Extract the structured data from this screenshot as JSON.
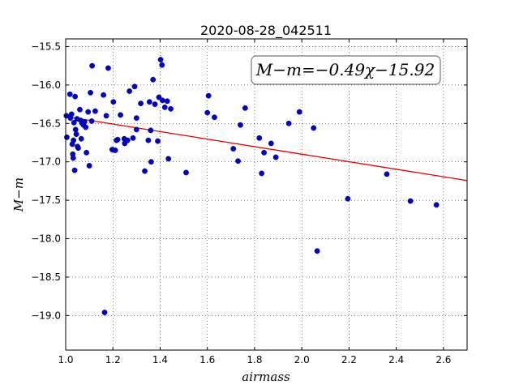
{
  "chart_data": {
    "type": "scatter",
    "title": "2020-08-28_042511",
    "xlabel": "airmass",
    "ylabel": "M−m",
    "xlim": [
      1.0,
      2.7
    ],
    "ylim": [
      -19.45,
      -15.4
    ],
    "xticks": [
      "1.0",
      "1.2",
      "1.4",
      "1.6",
      "1.8",
      "2.0",
      "2.2",
      "2.4",
      "2.6"
    ],
    "yticks": [
      "−15.5",
      "−16.0",
      "−16.5",
      "−17.0",
      "−17.5",
      "−18.0",
      "−18.5",
      "−19.0"
    ],
    "grid": true,
    "annotation": "M−m=−0.49χ−15.92",
    "fit": {
      "slope": -0.49,
      "intercept": -15.92,
      "color": "#dd0000"
    },
    "point_color": "#0000cc",
    "points": [
      [
        1.003,
        -16.4
      ],
      [
        1.005,
        -16.68
      ],
      [
        1.018,
        -16.12
      ],
      [
        1.02,
        -16.43
      ],
      [
        1.025,
        -16.38
      ],
      [
        1.028,
        -16.77
      ],
      [
        1.03,
        -16.9
      ],
      [
        1.032,
        -16.95
      ],
      [
        1.033,
        -16.72
      ],
      [
        1.035,
        -16.49
      ],
      [
        1.038,
        -17.11
      ],
      [
        1.04,
        -16.15
      ],
      [
        1.042,
        -16.58
      ],
      [
        1.045,
        -16.64
      ],
      [
        1.048,
        -16.44
      ],
      [
        1.05,
        -16.8
      ],
      [
        1.053,
        -16.82
      ],
      [
        1.06,
        -16.32
      ],
      [
        1.063,
        -16.46
      ],
      [
        1.066,
        -16.7
      ],
      [
        1.07,
        -16.5
      ],
      [
        1.075,
        -16.52
      ],
      [
        1.08,
        -16.48
      ],
      [
        1.085,
        -16.55
      ],
      [
        1.088,
        -16.88
      ],
      [
        1.095,
        -16.35
      ],
      [
        1.1,
        -17.05
      ],
      [
        1.105,
        -16.1
      ],
      [
        1.11,
        -16.47
      ],
      [
        1.112,
        -15.75
      ],
      [
        1.125,
        -16.34
      ],
      [
        1.16,
        -16.13
      ],
      [
        1.165,
        -18.96
      ],
      [
        1.172,
        -16.4
      ],
      [
        1.18,
        -15.78
      ],
      [
        1.197,
        -16.84
      ],
      [
        1.202,
        -16.22
      ],
      [
        1.21,
        -16.85
      ],
      [
        1.215,
        -16.72
      ],
      [
        1.22,
        -16.71
      ],
      [
        1.232,
        -16.39
      ],
      [
        1.248,
        -16.7
      ],
      [
        1.25,
        -16.76
      ],
      [
        1.262,
        -16.72
      ],
      [
        1.27,
        -16.08
      ],
      [
        1.285,
        -16.69
      ],
      [
        1.292,
        -16.02
      ],
      [
        1.3,
        -16.43
      ],
      [
        1.3,
        -16.58
      ],
      [
        1.318,
        -16.24
      ],
      [
        1.335,
        -17.12
      ],
      [
        1.35,
        -16.72
      ],
      [
        1.355,
        -16.22
      ],
      [
        1.36,
        -16.59
      ],
      [
        1.362,
        -17.0
      ],
      [
        1.37,
        -15.93
      ],
      [
        1.378,
        -16.25
      ],
      [
        1.39,
        -16.73
      ],
      [
        1.395,
        -16.16
      ],
      [
        1.402,
        -15.67
      ],
      [
        1.408,
        -15.74
      ],
      [
        1.41,
        -16.2
      ],
      [
        1.42,
        -16.29
      ],
      [
        1.43,
        -16.21
      ],
      [
        1.435,
        -16.96
      ],
      [
        1.445,
        -16.31
      ],
      [
        1.51,
        -17.14
      ],
      [
        1.6,
        -16.36
      ],
      [
        1.605,
        -16.14
      ],
      [
        1.63,
        -16.42
      ],
      [
        1.71,
        -16.83
      ],
      [
        1.73,
        -16.99
      ],
      [
        1.74,
        -16.52
      ],
      [
        1.76,
        -16.3
      ],
      [
        1.82,
        -16.69
      ],
      [
        1.83,
        -17.15
      ],
      [
        1.84,
        -16.88
      ],
      [
        1.87,
        -16.76
      ],
      [
        1.89,
        -16.94
      ],
      [
        1.945,
        -16.5
      ],
      [
        1.99,
        -16.35
      ],
      [
        2.05,
        -16.56
      ],
      [
        2.065,
        -18.16
      ],
      [
        2.195,
        -17.48
      ],
      [
        2.36,
        -17.16
      ],
      [
        2.46,
        -17.51
      ],
      [
        2.57,
        -17.56
      ]
    ]
  }
}
